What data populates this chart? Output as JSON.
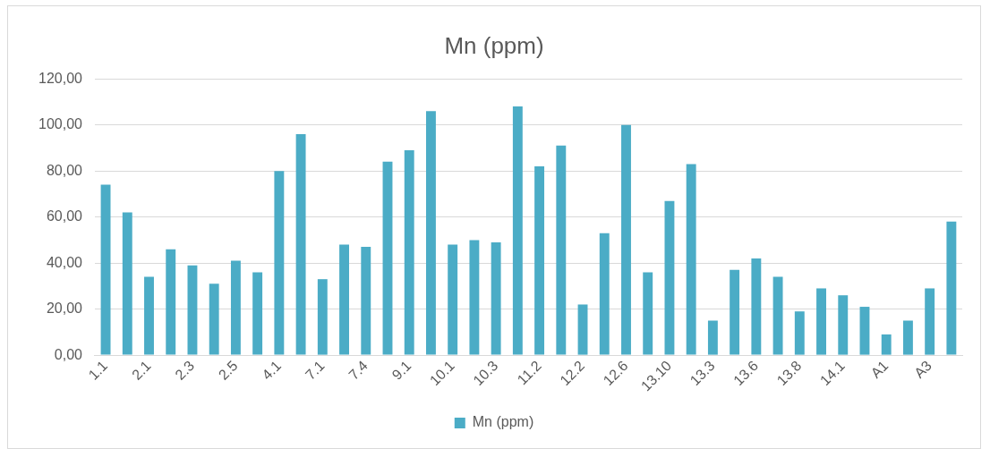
{
  "chart_data": {
    "type": "bar",
    "title": "Mn (ppm)",
    "categories": [
      "1.1",
      null,
      "2.1",
      null,
      "2.3",
      null,
      "2.5",
      null,
      "4.1",
      null,
      "7.1",
      null,
      "7.4",
      null,
      "9.1",
      null,
      "10.1",
      null,
      "10.3",
      null,
      "11.2",
      null,
      "12.2",
      null,
      "12.6",
      null,
      "13.10",
      null,
      "13.3",
      null,
      "13.6",
      null,
      "13.8",
      null,
      "14.1",
      null,
      "A1",
      null,
      "A3",
      null
    ],
    "series": [
      {
        "name": "Mn (ppm)",
        "color": "#4bacc6",
        "values": [
          74,
          62,
          34,
          46,
          39,
          31,
          41,
          36,
          80,
          96,
          33,
          48,
          47,
          84,
          89,
          106,
          48,
          50,
          49,
          108,
          82,
          91,
          22,
          53,
          100,
          36,
          67,
          83,
          15,
          37,
          42,
          34,
          19,
          29,
          26,
          21,
          9,
          15,
          29,
          58
        ]
      }
    ],
    "ylim": [
      0,
      120
    ],
    "yticks": [
      {
        "value": 0,
        "label": "0,00"
      },
      {
        "value": 20,
        "label": "20,00"
      },
      {
        "value": 40,
        "label": "40,00"
      },
      {
        "value": 60,
        "label": "60,00"
      },
      {
        "value": 80,
        "label": "80,00"
      },
      {
        "value": 100,
        "label": "100,00"
      },
      {
        "value": 120,
        "label": "120,00"
      }
    ],
    "grid": "y",
    "legend": "bottom"
  }
}
